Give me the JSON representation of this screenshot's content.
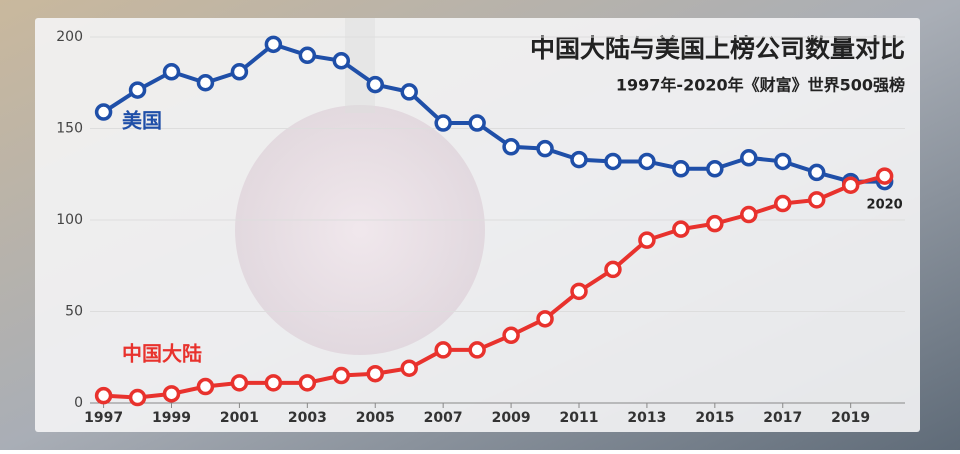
{
  "chart_data": {
    "type": "line",
    "title": "中国大陆与美国上榜公司数量对比",
    "subtitle": "1997年-2020年《财富》世界500强榜",
    "annotation": "2020",
    "x": [
      1997,
      1998,
      1999,
      2000,
      2001,
      2002,
      2003,
      2004,
      2005,
      2006,
      2007,
      2008,
      2009,
      2010,
      2011,
      2012,
      2013,
      2014,
      2015,
      2016,
      2017,
      2018,
      2019,
      2020
    ],
    "series": [
      {
        "name": "美国",
        "color": "#1f4fa8",
        "values": [
          159,
          171,
          181,
          175,
          181,
          196,
          190,
          187,
          174,
          170,
          153,
          153,
          140,
          139,
          133,
          132,
          132,
          128,
          128,
          134,
          132,
          126,
          121,
          121
        ]
      },
      {
        "name": "中国大陆",
        "color": "#e8322d",
        "values": [
          4,
          3,
          5,
          9,
          11,
          11,
          11,
          15,
          16,
          19,
          29,
          29,
          37,
          46,
          61,
          73,
          89,
          95,
          98,
          103,
          109,
          111,
          119,
          124
        ]
      }
    ],
    "xlim": [
      1996.6,
      2020.6
    ],
    "xticks": [
      1997,
      1999,
      2001,
      2003,
      2005,
      2007,
      2009,
      2011,
      2013,
      2015,
      2017,
      2019
    ],
    "ylim": [
      0,
      200
    ],
    "yticks": [
      0,
      50,
      100,
      150,
      200
    ],
    "grid": true
  }
}
